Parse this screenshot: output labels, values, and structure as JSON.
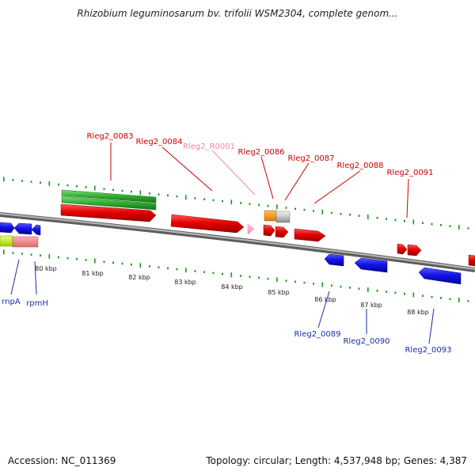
{
  "title": "Rhizobium leguminosarum bv. trifolii WSM2304, complete genom...",
  "footer": {
    "accession_label": "Accession:",
    "accession": "NC_011369",
    "topology_label": "Topology:",
    "topology": "circular",
    "length_label": "Length:",
    "length": "4,537,948 bp",
    "genes_label": "Genes:",
    "genes": "4,387"
  },
  "scale_labels": [
    {
      "kbp": 80,
      "text": "80 kbp"
    },
    {
      "kbp": 81,
      "text": "81 kbp"
    },
    {
      "kbp": 82,
      "text": "82 kbp"
    },
    {
      "kbp": 83,
      "text": "83 kbp"
    },
    {
      "kbp": 84,
      "text": "84 kbp"
    },
    {
      "kbp": 85,
      "text": "85 kbp"
    },
    {
      "kbp": 86,
      "text": "86 kbp"
    },
    {
      "kbp": 87,
      "text": "87 kbp"
    },
    {
      "kbp": 88,
      "text": "88 kbp"
    }
  ],
  "forward_labels": [
    {
      "text": "Rleg2_0083",
      "color": "#cc0000"
    },
    {
      "text": "Rleg2_0084",
      "color": "#cc0000"
    },
    {
      "text": "Rleg2_R0001",
      "color": "#ee88aa"
    },
    {
      "text": "Rleg2_0086",
      "color": "#cc0000"
    },
    {
      "text": "Rleg2_0087",
      "color": "#cc0000"
    },
    {
      "text": "Rleg2_0088",
      "color": "#cc0000"
    },
    {
      "text": "Rleg2_0091",
      "color": "#cc0000"
    }
  ],
  "reverse_labels": [
    {
      "text": "rnpA",
      "color": "#1a2ea8"
    },
    {
      "text": "rpmH",
      "color": "#1a2ea8"
    },
    {
      "text": "Rleg2_0089",
      "color": "#1a2ea8"
    },
    {
      "text": "Rleg2_0090",
      "color": "#1a2ea8"
    },
    {
      "text": "Rleg2_0093",
      "color": "#1a2ea8"
    }
  ],
  "colors": {
    "forward_cds": "#e60000",
    "reverse_cds": "#1414e6",
    "rna": "#ff99cc",
    "gc_skew_ticks": "#1e9a1e",
    "green_feature": "#33bb33",
    "backbone": "#888888"
  }
}
